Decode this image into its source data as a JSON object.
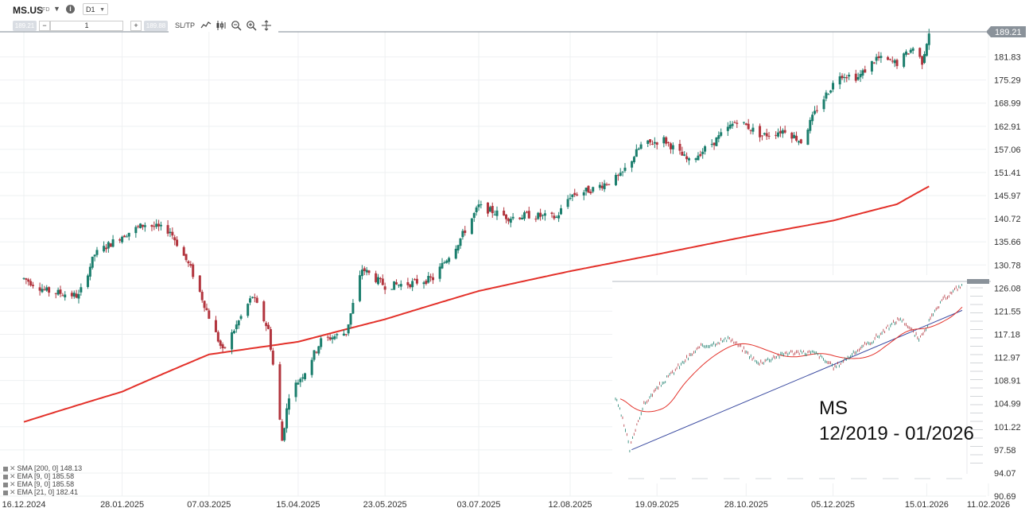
{
  "toolbar": {
    "symbol": "MS.US",
    "symbol_type": "CFD",
    "timeframe": "D1",
    "sell_price": "189.21",
    "buy_price": "189.88",
    "volume": "1",
    "sltp_label": "SL/TP",
    "minus": "−",
    "plus": "+"
  },
  "colors": {
    "up": "#1b7e6d",
    "down": "#b2353e",
    "sma": "#e3312a",
    "price_line": "#7d8790",
    "price_tag": "#8a929a",
    "trendline": "#3a4aa0"
  },
  "chart_data": [
    {
      "type": "candlestick",
      "title": "MS.US",
      "timeframe": "D1",
      "x_axis_labels": [
        "16.12.2024",
        "28.01.2025",
        "07.03.2025",
        "15.04.2025",
        "23.05.2025",
        "03.07.2025",
        "12.08.2025",
        "19.09.2025",
        "28.10.2025",
        "05.12.2025",
        "15.01.2026",
        "11.02.2026"
      ],
      "y_axis_labels": [
        "181.83",
        "175.29",
        "168.99",
        "162.91",
        "157.06",
        "151.41",
        "145.97",
        "140.72",
        "135.66",
        "130.78",
        "126.08",
        "121.55",
        "117.18",
        "112.97",
        "108.91",
        "104.99",
        "101.22",
        "97.58",
        "94.07",
        "90.69"
      ],
      "ylim": [
        90.69,
        189.21
      ],
      "log_scale": true,
      "current_price": "189.21",
      "grid": true,
      "price_keypoints": [
        [
          "2024-12-16",
          128.0
        ],
        [
          "2024-12-26",
          125.5
        ],
        [
          "2025-01-09",
          124.5
        ],
        [
          "2025-01-16",
          133.0
        ],
        [
          "2025-01-28",
          137.0
        ],
        [
          "2025-02-07",
          139.5
        ],
        [
          "2025-02-18",
          138.0
        ],
        [
          "2025-02-27",
          130.0
        ],
        [
          "2025-03-07",
          120.5
        ],
        [
          "2025-03-13",
          114.0
        ],
        [
          "2025-03-26",
          124.5
        ],
        [
          "2025-04-02",
          118.0
        ],
        [
          "2025-04-08",
          99.0
        ],
        [
          "2025-04-11",
          106.5
        ],
        [
          "2025-04-18",
          110.5
        ],
        [
          "2025-04-25",
          116.0
        ],
        [
          "2025-05-06",
          117.5
        ],
        [
          "2025-05-13",
          130.0
        ],
        [
          "2025-05-23",
          126.5
        ],
        [
          "2025-06-03",
          127.0
        ],
        [
          "2025-06-13",
          128.0
        ],
        [
          "2025-06-24",
          135.5
        ],
        [
          "2025-07-03",
          143.5
        ],
        [
          "2025-07-16",
          141.0
        ],
        [
          "2025-07-25",
          141.5
        ],
        [
          "2025-08-06",
          141.0
        ],
        [
          "2025-08-12",
          146.0
        ],
        [
          "2025-08-22",
          147.5
        ],
        [
          "2025-09-03",
          150.5
        ],
        [
          "2025-09-12",
          158.0
        ],
        [
          "2025-09-22",
          159.5
        ],
        [
          "2025-10-03",
          154.0
        ],
        [
          "2025-10-14",
          159.0
        ],
        [
          "2025-10-24",
          164.5
        ],
        [
          "2025-11-04",
          160.5
        ],
        [
          "2025-11-14",
          162.0
        ],
        [
          "2025-11-21",
          159.0
        ],
        [
          "2025-11-28",
          167.5
        ],
        [
          "2025-12-08",
          177.0
        ],
        [
          "2025-12-16",
          176.0
        ],
        [
          "2025-12-24",
          181.5
        ],
        [
          "2026-01-02",
          180.0
        ],
        [
          "2026-01-09",
          184.5
        ],
        [
          "2026-01-13",
          180.5
        ],
        [
          "2026-01-16",
          189.2
        ]
      ],
      "sma200_keypoints": [
        [
          "2024-12-16",
          102.0
        ],
        [
          "2025-01-28",
          107.0
        ],
        [
          "2025-03-07",
          113.5
        ],
        [
          "2025-04-15",
          115.8
        ],
        [
          "2025-05-23",
          120.0
        ],
        [
          "2025-07-03",
          125.5
        ],
        [
          "2025-08-12",
          129.5
        ],
        [
          "2025-09-19",
          133.0
        ],
        [
          "2025-10-28",
          136.8
        ],
        [
          "2025-12-05",
          140.3
        ],
        [
          "2026-01-02",
          144.0
        ],
        [
          "2026-01-16",
          148.13
        ]
      ],
      "indicators": [
        {
          "label": "SMA [200, 0]",
          "value": "148.13"
        },
        {
          "label": "EMA [9, 0]",
          "value": "185.58"
        },
        {
          "label": "EMA [9, 0]",
          "value": "185.58"
        },
        {
          "label": "EMA [21, 0]",
          "value": "182.41"
        }
      ]
    },
    {
      "type": "candlestick",
      "title": "MS",
      "caption_line1": "MS",
      "caption_line2": "12/2019 - 01/2026",
      "price_keypoints": [
        [
          "2019-12",
          51.0
        ],
        [
          "2020-03",
          28.0
        ],
        [
          "2020-06",
          47.0
        ],
        [
          "2020-12",
          68.0
        ],
        [
          "2021-06",
          92.0
        ],
        [
          "2021-12",
          101.0
        ],
        [
          "2022-06",
          76.0
        ],
        [
          "2022-12",
          86.0
        ],
        [
          "2023-06",
          86.0
        ],
        [
          "2023-10",
          72.0
        ],
        [
          "2024-06",
          98.0
        ],
        [
          "2024-12",
          128.0
        ],
        [
          "2025-04",
          99.0
        ],
        [
          "2025-09",
          158.0
        ],
        [
          "2026-01",
          189.0
        ]
      ]
    }
  ]
}
